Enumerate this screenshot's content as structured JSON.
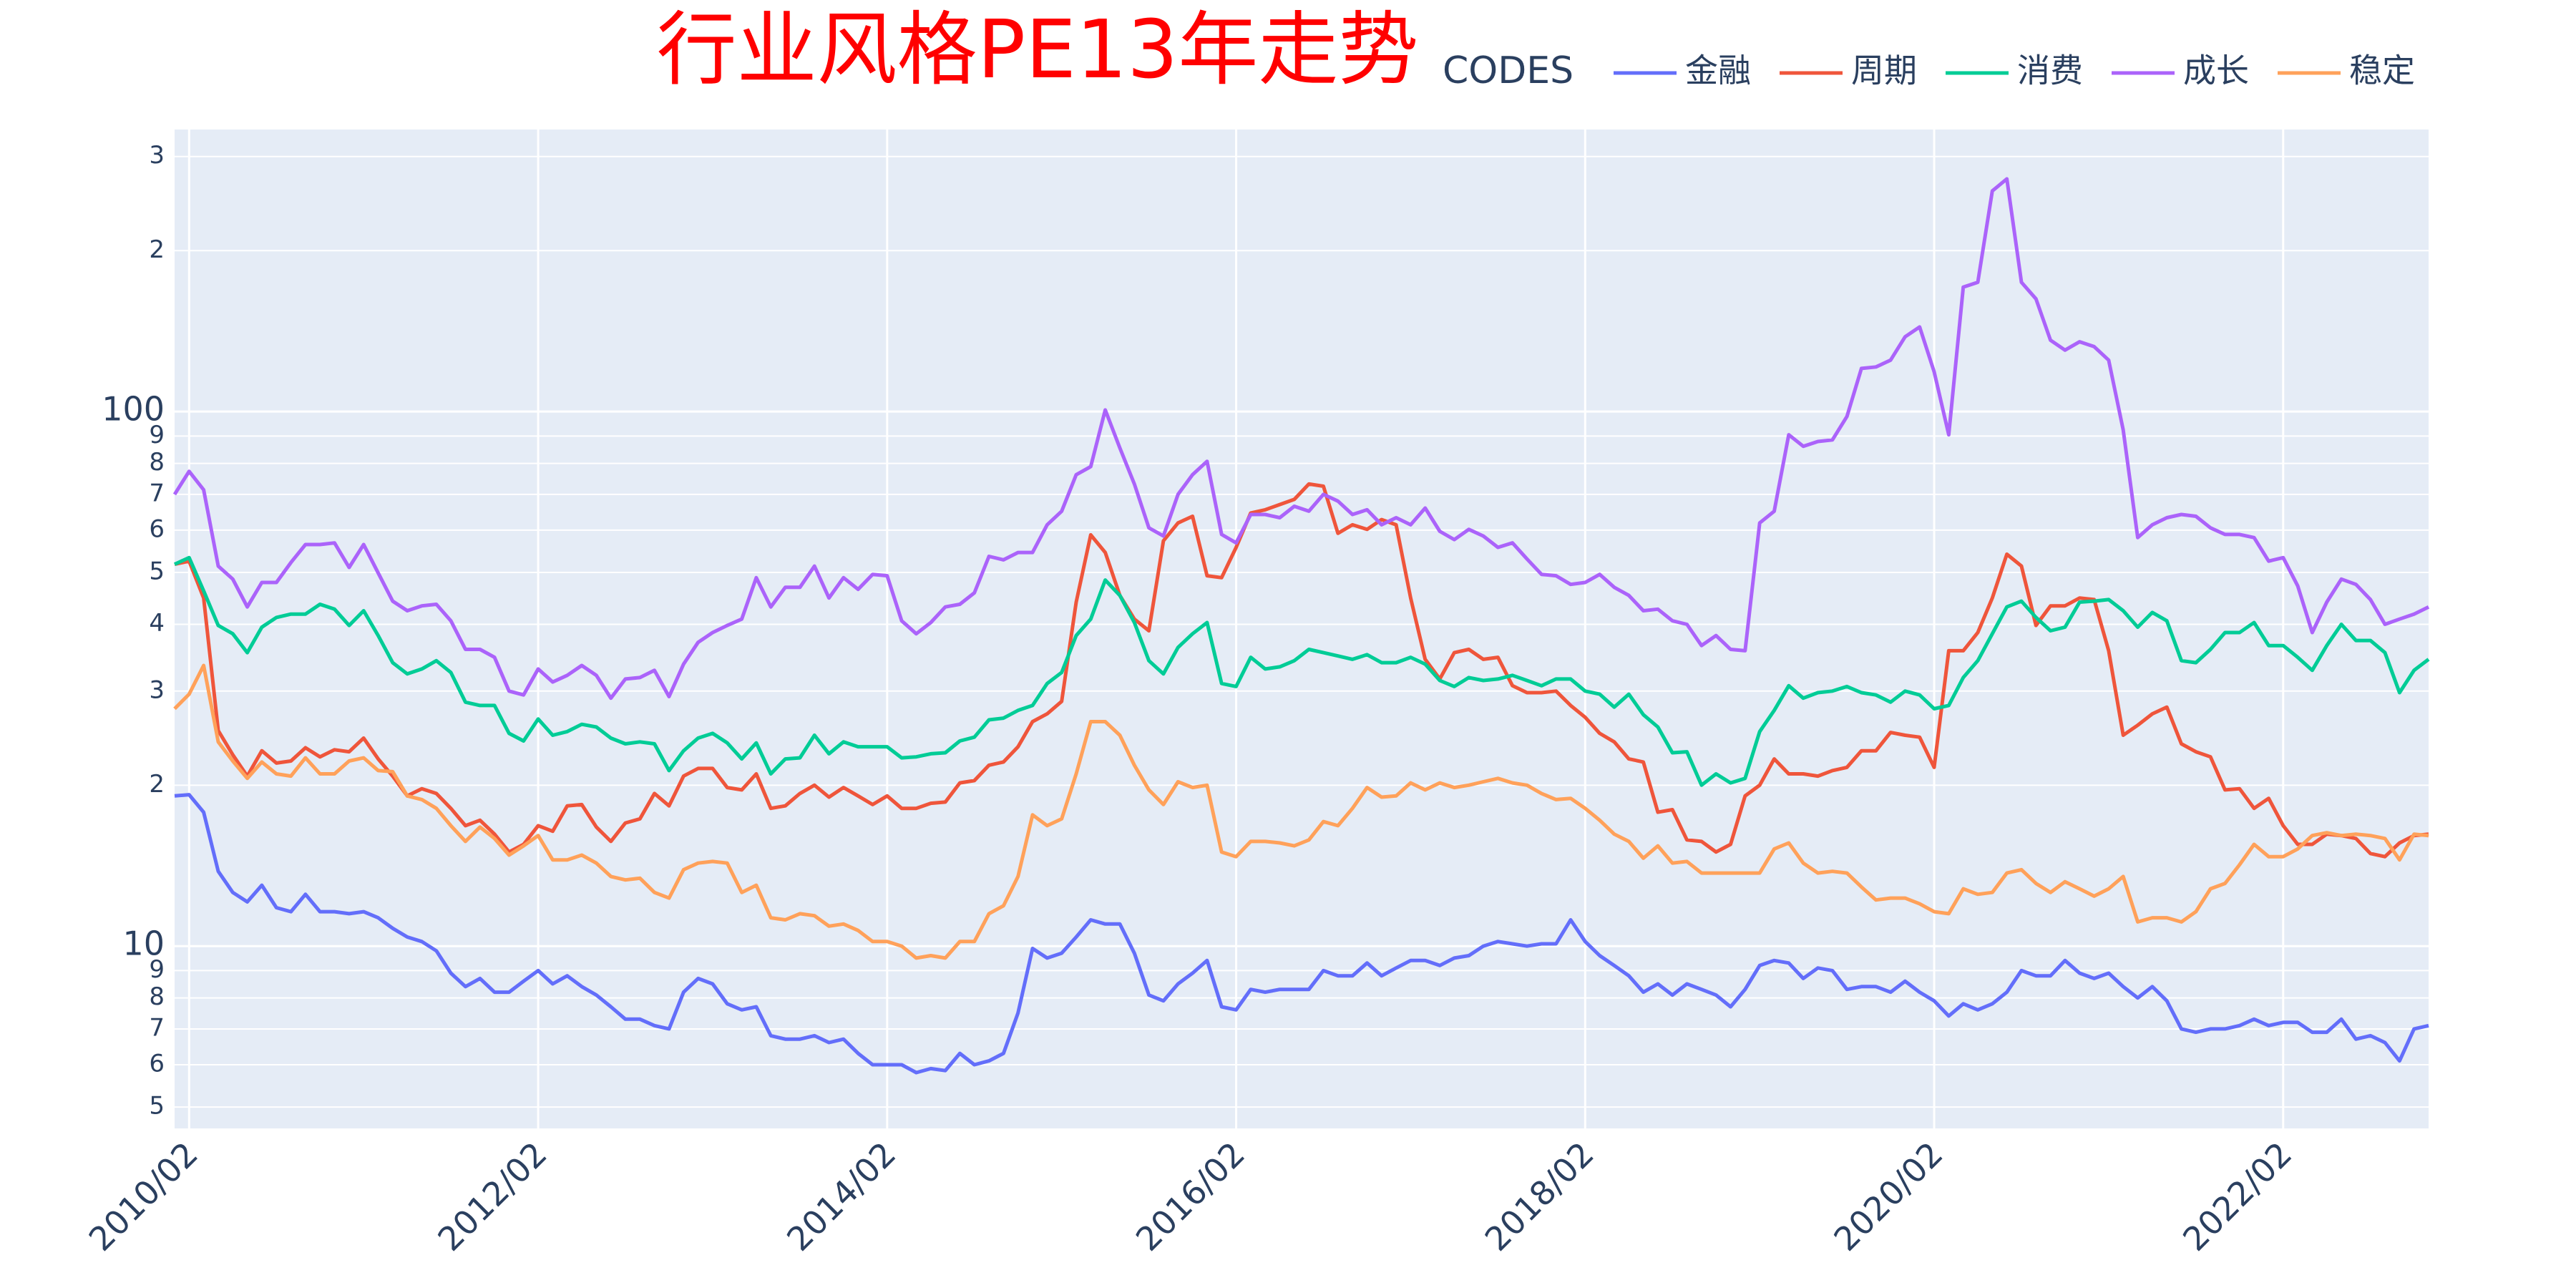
{
  "chart_data": {
    "type": "line",
    "title": "行业风格PE13年走势",
    "legend_title": "CODES",
    "log_y": true,
    "grid": true,
    "title_color": "#ff0000",
    "x": [
      "2010/01",
      "2010/02",
      "2010/03",
      "2010/04",
      "2010/05",
      "2010/06",
      "2010/07",
      "2010/08",
      "2010/09",
      "2010/10",
      "2010/11",
      "2010/12",
      "2011/01",
      "2011/02",
      "2011/03",
      "2011/04",
      "2011/05",
      "2011/06",
      "2011/07",
      "2011/08",
      "2011/09",
      "2011/10",
      "2011/11",
      "2011/12",
      "2012/01",
      "2012/02",
      "2012/03",
      "2012/04",
      "2012/05",
      "2012/06",
      "2012/07",
      "2012/08",
      "2012/09",
      "2012/10",
      "2012/11",
      "2012/12",
      "2013/01",
      "2013/02",
      "2013/03",
      "2013/04",
      "2013/05",
      "2013/06",
      "2013/07",
      "2013/08",
      "2013/09",
      "2013/10",
      "2013/11",
      "2013/12",
      "2014/01",
      "2014/02",
      "2014/03",
      "2014/04",
      "2014/05",
      "2014/06",
      "2014/07",
      "2014/08",
      "2014/09",
      "2014/10",
      "2014/11",
      "2014/12",
      "2015/01",
      "2015/02",
      "2015/03",
      "2015/04",
      "2015/05",
      "2015/06",
      "2015/07",
      "2015/08",
      "2015/09",
      "2015/10",
      "2015/11",
      "2015/12",
      "2016/01",
      "2016/02",
      "2016/03",
      "2016/04",
      "2016/05",
      "2016/06",
      "2016/07",
      "2016/08",
      "2016/09",
      "2016/10",
      "2016/11",
      "2016/12",
      "2017/01",
      "2017/02",
      "2017/03",
      "2017/04",
      "2017/05",
      "2017/06",
      "2017/07",
      "2017/08",
      "2017/09",
      "2017/10",
      "2017/11",
      "2017/12",
      "2018/01",
      "2018/02",
      "2018/03",
      "2018/04",
      "2018/05",
      "2018/06",
      "2018/07",
      "2018/08",
      "2018/09",
      "2018/10",
      "2018/11",
      "2018/12",
      "2019/01",
      "2019/02",
      "2019/03",
      "2019/04",
      "2019/05",
      "2019/06",
      "2019/07",
      "2019/08",
      "2019/09",
      "2019/10",
      "2019/11",
      "2019/12",
      "2020/01",
      "2020/02",
      "2020/03",
      "2020/04",
      "2020/05",
      "2020/06",
      "2020/07",
      "2020/08",
      "2020/09",
      "2020/10",
      "2020/11",
      "2020/12",
      "2021/01",
      "2021/02",
      "2021/03",
      "2021/04",
      "2021/05",
      "2021/06",
      "2021/07",
      "2021/08",
      "2021/09",
      "2021/10",
      "2021/11",
      "2021/12",
      "2022/01",
      "2022/02",
      "2022/03",
      "2022/04",
      "2022/05",
      "2022/06",
      "2022/07",
      "2022/08",
      "2022/09",
      "2022/10",
      "2022/11",
      "2022/12"
    ],
    "xlim": [
      "2010/01",
      "2022/12"
    ],
    "xticks": [
      "2010/02",
      "2012/02",
      "2014/02",
      "2016/02",
      "2018/02",
      "2020/02",
      "2022/02"
    ],
    "ylim": [
      4.56,
      337
    ],
    "yticks": [
      {
        "value": 300,
        "label": "3"
      },
      {
        "value": 200,
        "label": "2"
      },
      100,
      {
        "value": 90,
        "label": "9"
      },
      {
        "value": 80,
        "label": "8"
      },
      {
        "value": 70,
        "label": "7"
      },
      {
        "value": 60,
        "label": "6"
      },
      {
        "value": 50,
        "label": "5"
      },
      {
        "value": 40,
        "label": "4"
      },
      {
        "value": 30,
        "label": "3"
      },
      {
        "value": 20,
        "label": "2"
      },
      10,
      {
        "value": 9,
        "label": "9"
      },
      {
        "value": 8,
        "label": "8"
      },
      {
        "value": 7,
        "label": "7"
      },
      {
        "value": 6,
        "label": "6"
      },
      {
        "value": 5,
        "label": "5"
      }
    ],
    "series": [
      {
        "name": "金融",
        "color": "#636efa",
        "values": [
          19.1,
          19.2,
          17.8,
          13.8,
          12.6,
          12.1,
          13.0,
          11.8,
          11.6,
          12.5,
          11.6,
          11.6,
          11.5,
          11.6,
          11.3,
          10.8,
          10.4,
          10.2,
          9.8,
          8.9,
          8.4,
          8.7,
          8.2,
          8.2,
          8.6,
          9.0,
          8.5,
          8.8,
          8.4,
          8.1,
          7.7,
          7.3,
          7.3,
          7.1,
          7.0,
          8.2,
          8.7,
          8.5,
          7.8,
          7.6,
          7.7,
          6.8,
          6.7,
          6.7,
          6.8,
          6.6,
          6.7,
          6.3,
          6.0,
          6.0,
          6.0,
          5.8,
          5.9,
          5.85,
          6.3,
          6.0,
          6.1,
          6.3,
          7.5,
          9.9,
          9.5,
          9.7,
          10.4,
          11.2,
          11.0,
          11.0,
          9.7,
          8.1,
          7.9,
          8.5,
          8.9,
          9.4,
          7.7,
          7.6,
          8.3,
          8.2,
          8.3,
          8.3,
          8.3,
          9.0,
          8.8,
          8.8,
          9.3,
          8.8,
          9.1,
          9.4,
          9.4,
          9.2,
          9.5,
          9.6,
          10.0,
          10.2,
          10.1,
          10.0,
          10.1,
          10.1,
          11.2,
          10.2,
          9.6,
          9.2,
          8.8,
          8.2,
          8.5,
          8.1,
          8.5,
          8.3,
          8.1,
          7.7,
          8.3,
          9.2,
          9.4,
          9.3,
          8.7,
          9.1,
          9.0,
          8.3,
          8.4,
          8.4,
          8.2,
          8.6,
          8.2,
          7.9,
          7.4,
          7.8,
          7.6,
          7.8,
          8.2,
          9.0,
          8.8,
          8.8,
          9.4,
          8.9,
          8.7,
          8.9,
          8.4,
          8.0,
          8.4,
          7.9,
          7.0,
          6.9,
          7.0,
          7.0,
          7.1,
          7.3,
          7.1,
          7.2,
          7.2,
          6.9,
          6.9,
          7.3,
          6.7,
          6.8,
          6.6,
          6.1,
          7.0,
          7.1
        ]
      },
      {
        "name": "周期",
        "color": "#ef553b",
        "values": [
          51.8,
          52.5,
          44.8,
          25.3,
          22.8,
          20.8,
          23.2,
          22.0,
          22.2,
          23.5,
          22.6,
          23.3,
          23.1,
          24.5,
          22.4,
          20.8,
          19.1,
          19.7,
          19.3,
          18.1,
          16.8,
          17.2,
          16.2,
          15.0,
          15.5,
          16.8,
          16.4,
          18.3,
          18.4,
          16.7,
          15.7,
          17.0,
          17.3,
          19.3,
          18.3,
          20.8,
          21.5,
          21.5,
          19.8,
          19.6,
          21.0,
          18.1,
          18.3,
          19.3,
          20.0,
          19.0,
          19.8,
          19.1,
          18.4,
          19.1,
          18.1,
          18.1,
          18.5,
          18.6,
          20.2,
          20.4,
          21.8,
          22.1,
          23.6,
          26.3,
          27.2,
          28.7,
          44.0,
          58.8,
          54.5,
          45.3,
          40.9,
          38.9,
          57.3,
          61.9,
          63.7,
          49.3,
          48.9,
          55.7,
          64.6,
          65.5,
          67.0,
          68.5,
          73.2,
          72.5,
          59.2,
          61.4,
          60.2,
          62.8,
          61.4,
          44.8,
          34.4,
          31.6,
          35.4,
          35.9,
          34.4,
          34.7,
          30.7,
          29.8,
          29.8,
          30.0,
          28.2,
          26.8,
          25.0,
          24.1,
          22.4,
          22.1,
          17.8,
          18.0,
          15.8,
          15.7,
          15.0,
          15.5,
          19.1,
          20.0,
          22.4,
          21.0,
          21.0,
          20.8,
          21.3,
          21.6,
          23.2,
          23.2,
          25.1,
          24.8,
          24.6,
          21.6,
          35.7,
          35.7,
          38.6,
          44.8,
          54.1,
          51.4,
          39.8,
          43.3,
          43.3,
          44.8,
          44.5,
          35.7,
          24.8,
          25.9,
          27.2,
          28.0,
          23.9,
          23.1,
          22.6,
          19.6,
          19.7,
          18.1,
          18.9,
          16.8,
          15.5,
          15.5,
          16.2,
          16.1,
          15.9,
          14.9,
          14.7,
          15.6,
          16.1,
          16.2
        ]
      },
      {
        "name": "消费",
        "color": "#00cc96",
        "values": [
          51.8,
          53.3,
          46.2,
          39.8,
          38.4,
          35.4,
          39.5,
          41.2,
          41.8,
          41.8,
          43.6,
          42.7,
          39.8,
          42.4,
          38.1,
          33.9,
          32.3,
          33.0,
          34.2,
          32.5,
          28.6,
          28.2,
          28.2,
          25.0,
          24.2,
          26.6,
          24.8,
          25.2,
          26.0,
          25.7,
          24.5,
          23.9,
          24.1,
          23.9,
          21.3,
          23.2,
          24.5,
          25.0,
          24.0,
          22.4,
          24.0,
          21.0,
          22.4,
          22.5,
          24.8,
          22.9,
          24.1,
          23.6,
          23.6,
          23.6,
          22.5,
          22.6,
          22.9,
          23.0,
          24.2,
          24.6,
          26.5,
          26.7,
          27.6,
          28.2,
          31.0,
          32.5,
          38.1,
          40.9,
          48.4,
          45.3,
          40.3,
          34.2,
          32.3,
          36.2,
          38.4,
          40.3,
          31.0,
          30.6,
          34.7,
          33.0,
          33.3,
          34.2,
          35.9,
          35.4,
          34.9,
          34.4,
          35.1,
          33.9,
          33.9,
          34.7,
          33.7,
          31.4,
          30.6,
          31.8,
          31.4,
          31.6,
          32.1,
          31.4,
          30.7,
          31.6,
          31.6,
          30.0,
          29.6,
          28.0,
          29.6,
          27.1,
          25.7,
          23.0,
          23.1,
          20.0,
          21.0,
          20.2,
          20.6,
          25.2,
          27.6,
          30.7,
          29.1,
          29.8,
          30.0,
          30.6,
          29.8,
          29.5,
          28.6,
          30.0,
          29.5,
          27.8,
          28.2,
          31.8,
          34.2,
          38.4,
          43.1,
          44.2,
          41.2,
          38.9,
          39.5,
          44.0,
          44.2,
          44.5,
          42.4,
          39.5,
          42.1,
          40.6,
          34.2,
          33.9,
          35.9,
          38.6,
          38.6,
          40.3,
          36.5,
          36.5,
          34.7,
          32.8,
          36.5,
          40.0,
          37.3,
          37.3,
          35.4,
          29.8,
          32.8,
          34.4
        ]
      },
      {
        "name": "成长",
        "color": "#ab63fa",
        "values": [
          70.0,
          77.3,
          71.4,
          51.4,
          48.6,
          43.1,
          47.9,
          47.9,
          52.2,
          56.4,
          56.4,
          56.8,
          51.1,
          56.4,
          49.9,
          44.2,
          42.4,
          43.3,
          43.6,
          40.6,
          35.9,
          35.9,
          34.7,
          30.0,
          29.5,
          33.0,
          31.2,
          32.1,
          33.5,
          32.1,
          29.1,
          31.6,
          31.8,
          32.8,
          29.3,
          33.7,
          37.0,
          38.6,
          39.8,
          40.9,
          48.9,
          43.1,
          46.9,
          46.9,
          51.4,
          44.8,
          48.9,
          46.5,
          49.6,
          49.3,
          40.6,
          38.4,
          40.3,
          43.1,
          43.6,
          45.8,
          53.6,
          52.8,
          54.5,
          54.5,
          61.4,
          65.1,
          76.2,
          78.9,
          100.7,
          85.5,
          73.2,
          60.6,
          58.5,
          70.0,
          76.2,
          80.7,
          58.9,
          56.8,
          64.2,
          64.2,
          63.3,
          66.5,
          65.1,
          70.0,
          68.0,
          64.2,
          65.5,
          61.4,
          63.3,
          61.4,
          66.0,
          59.7,
          57.6,
          60.2,
          58.5,
          55.7,
          56.8,
          53.0,
          49.6,
          49.3,
          47.5,
          47.9,
          49.6,
          46.9,
          45.3,
          42.4,
          42.7,
          40.6,
          40.0,
          36.5,
          38.1,
          35.9,
          35.7,
          61.9,
          65.1,
          90.5,
          86.1,
          87.9,
          88.5,
          97.9,
          120.4,
          121.2,
          124.8,
          138.0,
          144.0,
          118.7,
          90.5,
          170.9,
          174.5,
          258.7,
          272.4,
          174.5,
          162.5,
          136.0,
          130.3,
          135.1,
          132.3,
          124.8,
          92.4,
          58.1,
          61.4,
          63.3,
          64.2,
          63.7,
          60.6,
          58.9,
          58.9,
          58.1,
          52.5,
          53.3,
          47.2,
          38.6,
          44.0,
          48.6,
          47.5,
          44.5,
          40.0,
          40.9,
          41.8,
          43.1
        ]
      },
      {
        "name": "稳定",
        "color": "#ffa15a",
        "values": [
          27.8,
          29.6,
          33.5,
          24.1,
          22.2,
          20.6,
          22.1,
          21.0,
          20.8,
          22.5,
          21.0,
          21.0,
          22.2,
          22.5,
          21.3,
          21.2,
          19.1,
          18.8,
          18.1,
          16.8,
          15.7,
          16.7,
          15.9,
          14.8,
          15.4,
          16.1,
          14.5,
          14.5,
          14.8,
          14.3,
          13.5,
          13.3,
          13.4,
          12.6,
          12.3,
          13.9,
          14.3,
          14.4,
          14.3,
          12.6,
          13.0,
          11.3,
          11.2,
          11.5,
          11.4,
          10.9,
          11.0,
          10.7,
          10.2,
          10.2,
          10.0,
          9.5,
          9.6,
          9.5,
          10.2,
          10.2,
          11.5,
          11.9,
          13.5,
          17.6,
          16.8,
          17.3,
          21.0,
          26.3,
          26.3,
          24.8,
          21.8,
          19.6,
          18.4,
          20.3,
          19.8,
          20.0,
          15.0,
          14.7,
          15.7,
          15.7,
          15.6,
          15.4,
          15.8,
          17.1,
          16.8,
          18.1,
          19.8,
          19.0,
          19.1,
          20.2,
          19.6,
          20.2,
          19.8,
          20.0,
          20.3,
          20.6,
          20.2,
          20.0,
          19.3,
          18.8,
          18.9,
          18.1,
          17.2,
          16.2,
          15.7,
          14.6,
          15.4,
          14.3,
          14.4,
          13.7,
          13.7,
          13.7,
          13.7,
          13.7,
          15.2,
          15.6,
          14.3,
          13.7,
          13.8,
          13.7,
          12.9,
          12.2,
          12.3,
          12.3,
          12.0,
          11.6,
          11.5,
          12.8,
          12.5,
          12.6,
          13.7,
          13.9,
          13.1,
          12.6,
          13.2,
          12.8,
          12.4,
          12.8,
          13.5,
          11.1,
          11.3,
          11.3,
          11.1,
          11.6,
          12.8,
          13.1,
          14.2,
          15.5,
          14.7,
          14.7,
          15.2,
          16.1,
          16.3,
          16.1,
          16.2,
          16.1,
          15.9,
          14.5,
          16.2,
          16.1
        ]
      }
    ]
  }
}
